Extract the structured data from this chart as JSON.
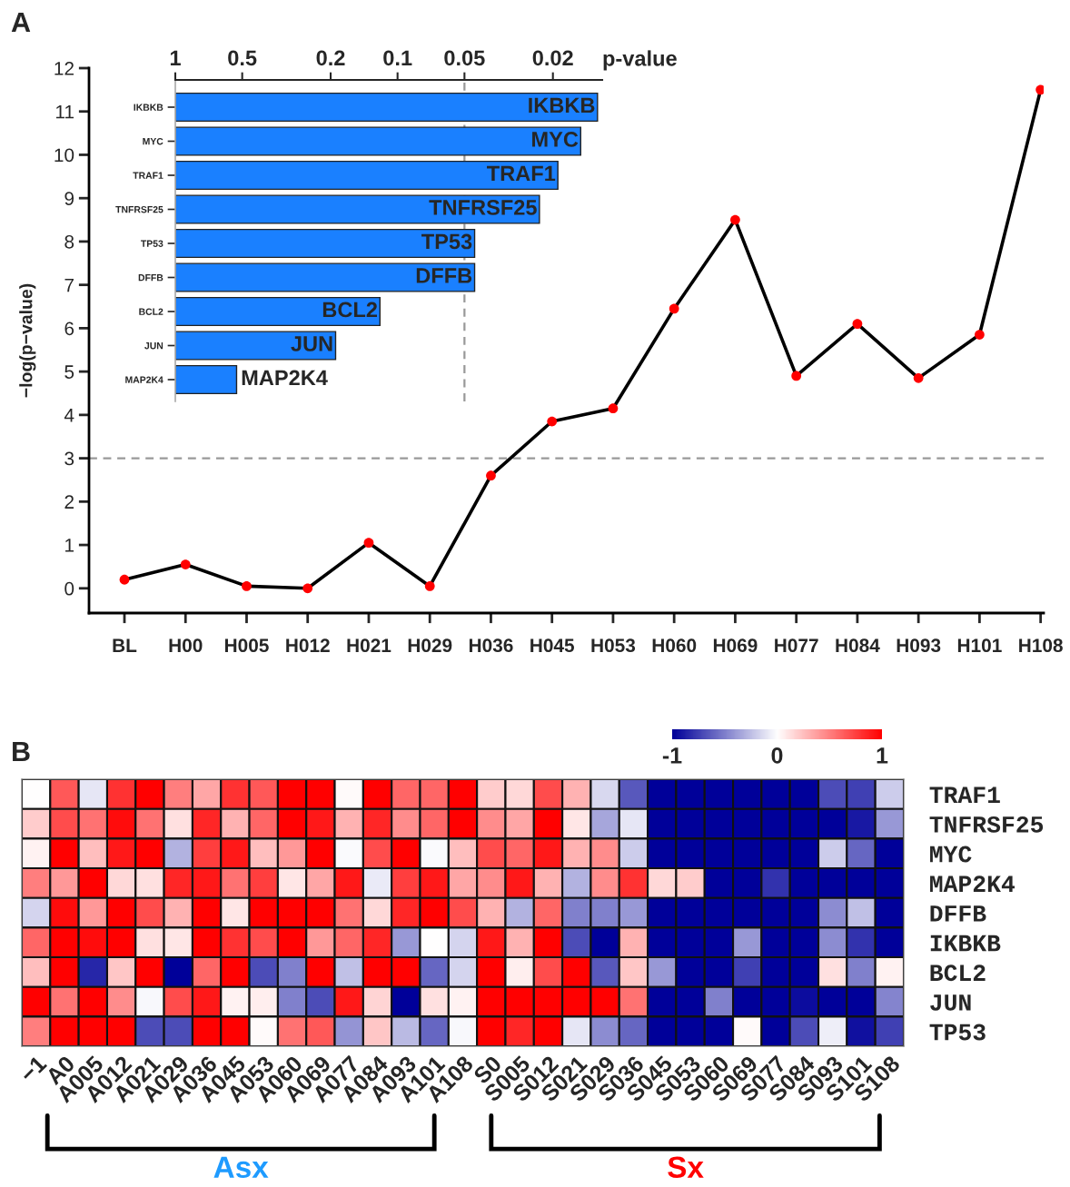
{
  "chart_data": [
    {
      "type": "line",
      "title": "A",
      "ylabel": "−log(p−value)",
      "categories": [
        "BL",
        "H00",
        "H005",
        "H012",
        "H021",
        "H029",
        "H036",
        "H045",
        "H053",
        "H060",
        "H069",
        "H077",
        "H084",
        "H093",
        "H101",
        "H108"
      ],
      "series": [
        {
          "color": "#000000",
          "colors": [
            "#ff0000",
            "#ff0000",
            "#ff0000",
            "#ff0000",
            "#ff0000",
            "#ff0000",
            "#ff0000",
            "#ff0000",
            "#ff0000",
            "#ff0000",
            "#ff0000",
            "#ff0000",
            "#ff0000",
            "#ff0000",
            "#ff0000",
            "#ff0000"
          ],
          "values": [
            0.2,
            0.55,
            0.05,
            0.0,
            1.05,
            0.05,
            2.6,
            3.85,
            4.15,
            6.45,
            8.5,
            4.9,
            6.1,
            4.85,
            5.85,
            11.5
          ]
        }
      ],
      "ylim": [
        -0.57,
        12
      ],
      "yticks": [
        0,
        1,
        2,
        3,
        4,
        5,
        6,
        7,
        8,
        9,
        10,
        11,
        12
      ],
      "marker": "circle",
      "line_style": "solid",
      "ref_lines": [
        {
          "axis": "y",
          "value": 3,
          "color": "#999999",
          "line_style": "dashed"
        }
      ]
    },
    {
      "type": "bar",
      "orientation": "horizontal",
      "xlabel": "p-value",
      "categories": [
        "IKBKB",
        "MYC",
        "TRAF1",
        "TNFRSF25",
        "TP53",
        "DFFB",
        "BCL2",
        "JUN",
        "MAP2K4"
      ],
      "base": [
        1,
        1,
        1,
        1,
        1,
        1,
        1,
        1,
        1
      ],
      "values": [
        -0.9874,
        -0.985,
        -0.981,
        -0.977,
        -0.955,
        -0.955,
        -0.88,
        -0.81,
        -0.47
      ],
      "color": "#1a80ff",
      "log": "x",
      "xlim": [
        1,
        0.012
      ],
      "xticks": [
        1,
        0.5,
        0.2,
        0.1,
        0.05,
        0.02
      ],
      "ref_lines": [
        {
          "axis": "x",
          "value": 0.05,
          "color": "#999999",
          "line_style": "dashed"
        }
      ],
      "annotations": [
        {
          "text": "IKBKB",
          "x": 0.0126,
          "y": "IKBKB"
        },
        {
          "text": "MYC",
          "x": 0.015,
          "y": "MYC"
        },
        {
          "text": "TRAF1",
          "x": 0.019,
          "y": "TRAF1"
        },
        {
          "text": "TNFRSF25",
          "x": 0.023,
          "y": "TNFRSF25"
        },
        {
          "text": "TP53",
          "x": 0.045,
          "y": "TP53"
        },
        {
          "text": "DFFB",
          "x": 0.045,
          "y": "DFFB"
        },
        {
          "text": "BCL2",
          "x": 0.12,
          "y": "BCL2"
        },
        {
          "text": "JUN",
          "x": 0.19,
          "y": "JUN"
        },
        {
          "text": "MAP2K4",
          "x": 0.53,
          "y": "MAP2K4"
        }
      ]
    },
    {
      "type": "heatmap",
      "title": "B",
      "categories": [
        "−1",
        "A0",
        "A005",
        "A012",
        "A021",
        "A029",
        "A036",
        "A045",
        "A053",
        "A060",
        "A069",
        "A077",
        "A084",
        "A093",
        "A101",
        "A108",
        "S0",
        "S005",
        "S012",
        "S021",
        "S029",
        "S036",
        "S045",
        "S053",
        "S060",
        "S069",
        "S077",
        "S084",
        "S093",
        "S101",
        "S108"
      ],
      "y_categories": [
        "TRAF1",
        "TNFRSF25",
        "MYC",
        "MAP2K4",
        "DFFB",
        "IKBKB",
        "BCL2",
        "JUN",
        "TP53"
      ],
      "cells": [
        [
          0,
          0.65,
          -0.1,
          0.8,
          1,
          0.5,
          0.35,
          0.8,
          0.65,
          1,
          1,
          0.02,
          1,
          0.6,
          0.6,
          1,
          0.2,
          0.15,
          0.7,
          0.3,
          -0.15,
          -0.65,
          -1,
          -1,
          -1,
          -1,
          -1,
          -1,
          -0.7,
          -0.75,
          -0.2
        ],
        [
          0.2,
          0.7,
          0.55,
          0.95,
          0.55,
          0.12,
          0.85,
          0.3,
          0.6,
          1,
          0.9,
          0.3,
          0.85,
          0.45,
          0.6,
          1,
          0.45,
          0.35,
          1,
          0.1,
          -0.35,
          -0.1,
          -1,
          -1,
          -1,
          -1,
          -1,
          -1,
          -1,
          -0.9,
          -0.4
        ],
        [
          0.05,
          1,
          0.25,
          0.9,
          1,
          -0.3,
          0.75,
          0.9,
          0.25,
          0.4,
          1,
          -0.02,
          0.7,
          1,
          -0.02,
          0.25,
          0.7,
          0.6,
          0.9,
          0.3,
          0.45,
          -0.2,
          -1,
          -1,
          -1,
          -1,
          -1,
          -1,
          -0.2,
          -0.6,
          -1
        ],
        [
          0.5,
          0.4,
          1,
          0.15,
          0.12,
          0.85,
          0.9,
          0.55,
          0.75,
          0.1,
          0.35,
          0.9,
          -0.08,
          0.75,
          0.9,
          0.35,
          0.45,
          0.9,
          0.3,
          -0.3,
          0.45,
          0.8,
          0.15,
          0.2,
          -1,
          -1,
          -0.8,
          -1,
          -1,
          -1,
          -1
        ],
        [
          -0.17,
          0.95,
          0.4,
          1,
          0.7,
          0.3,
          1,
          0.1,
          1,
          1,
          1,
          0.55,
          0.15,
          0.85,
          1,
          0.7,
          0.3,
          -0.3,
          0.6,
          -0.5,
          -0.5,
          -0.4,
          -1,
          -1,
          -1,
          -1,
          -1,
          -1,
          -0.45,
          -0.25,
          -1
        ],
        [
          0.6,
          1,
          0.95,
          1,
          0.12,
          0.1,
          1,
          0.8,
          0.7,
          1,
          0.4,
          0.6,
          0.85,
          -0.4,
          0,
          -0.17,
          0.9,
          0.3,
          1,
          -0.7,
          -1,
          0.3,
          -1,
          -1,
          -1,
          -0.4,
          -1,
          -1,
          -0.45,
          -0.8,
          -1
        ],
        [
          0.25,
          1,
          -0.85,
          0.22,
          1,
          -1,
          0.6,
          1,
          -0.7,
          -0.5,
          1,
          -0.25,
          1,
          1,
          -0.6,
          -0.17,
          1,
          0.07,
          0.7,
          1,
          -0.65,
          0.22,
          -0.4,
          -1,
          -1,
          -0.75,
          -1,
          -1,
          0.12,
          -0.5,
          0.05
        ],
        [
          1,
          0.55,
          1,
          0.45,
          -0.03,
          0.7,
          0.9,
          0.05,
          0.07,
          -0.5,
          -0.7,
          0.9,
          0.17,
          -1,
          0.12,
          0.05,
          1,
          1,
          1,
          1,
          1,
          0.55,
          -1,
          -1,
          -0.5,
          -1,
          -1,
          -0.95,
          -1,
          -1,
          -0.48
        ],
        [
          0.5,
          1,
          1,
          1,
          -0.7,
          -0.7,
          1,
          1,
          0.02,
          0.55,
          0.65,
          -0.42,
          0.22,
          -0.27,
          -0.6,
          -0.03,
          1,
          0.85,
          1,
          -0.1,
          -0.45,
          -0.6,
          -1,
          -1,
          -1,
          0.02,
          -1,
          -0.7,
          -0.07,
          -0.93,
          -0.75
        ]
      ],
      "colors": [
        "#000099",
        "#ffffff",
        "#ff0000"
      ],
      "clim": [
        -1,
        1
      ],
      "cticks": [
        {
          "value": -1,
          "label": "-1"
        },
        0,
        1
      ],
      "annotations": [
        "Asx",
        "Sx"
      ]
    }
  ]
}
